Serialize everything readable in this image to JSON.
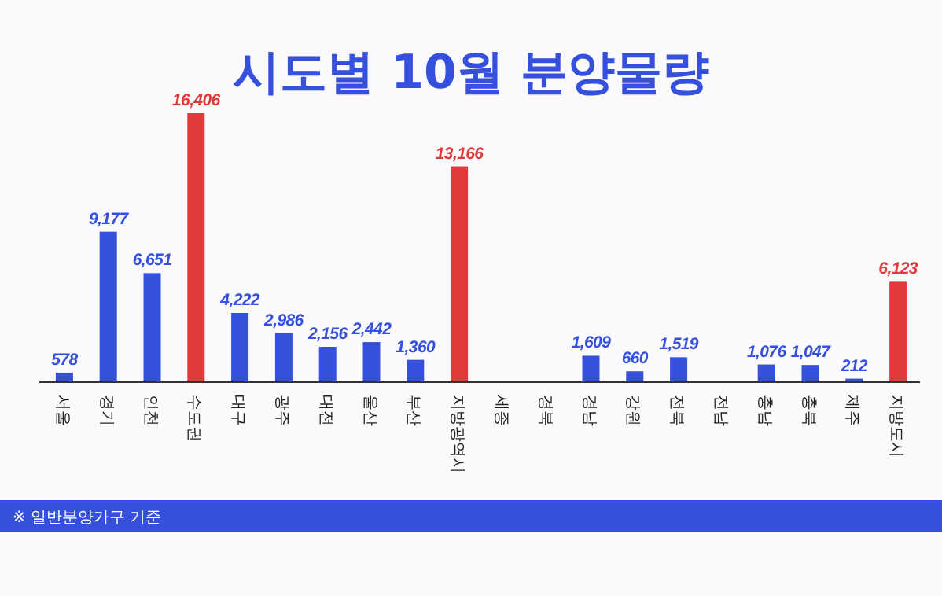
{
  "chart_data": {
    "type": "bar",
    "title": "시도별 10월 분양물량",
    "categories": [
      "서울",
      "경기",
      "인천",
      "수도권",
      "대구",
      "광주",
      "대전",
      "울산",
      "부산",
      "지방광역시",
      "세종",
      "경북",
      "경남",
      "강원",
      "전북",
      "전남",
      "충남",
      "충북",
      "제주",
      "지방도시"
    ],
    "values": [
      578,
      9177,
      6651,
      16406,
      4222,
      2986,
      2156,
      2442,
      1360,
      13166,
      null,
      null,
      1609,
      660,
      1519,
      null,
      1076,
      1047,
      212,
      6123
    ],
    "colors": [
      "#3450dc",
      "#3450dc",
      "#3450dc",
      "#e03a3a",
      "#3450dc",
      "#3450dc",
      "#3450dc",
      "#3450dc",
      "#3450dc",
      "#e03a3a",
      "#3450dc",
      "#3450dc",
      "#3450dc",
      "#3450dc",
      "#3450dc",
      "#3450dc",
      "#3450dc",
      "#3450dc",
      "#3450dc",
      "#e03a3a"
    ],
    "value_labels": [
      "578",
      "9,177",
      "6,651",
      "16,406",
      "4,222",
      "2,986",
      "2,156",
      "2,442",
      "1,360",
      "13,166",
      null,
      null,
      "1,609",
      "660",
      "1,519",
      null,
      "1,076",
      "1,047",
      "212",
      "6,123"
    ],
    "annotations": [
      "※ 일반분양가구 기준"
    ]
  }
}
